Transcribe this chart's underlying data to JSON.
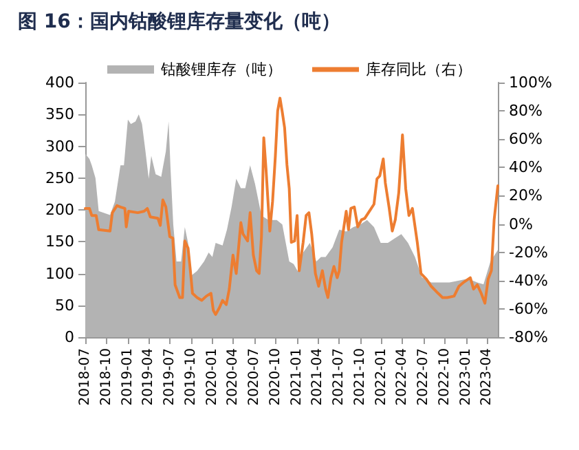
{
  "chart_data": {
    "type": "line",
    "title": "图 16：国内钴酸锂库存量变化（吨）",
    "legend": "top",
    "grid": false,
    "xlim": [
      "2018-07-01",
      "2023-05-18"
    ],
    "xticks": [
      "2018-07",
      "2018-10",
      "2019-01",
      "2019-04",
      "2019-07",
      "2019-10",
      "2020-01",
      "2020-04",
      "2020-07",
      "2020-10",
      "2021-01",
      "2021-04",
      "2021-07",
      "2021-10",
      "2022-01",
      "2022-04",
      "2022-07",
      "2022-10",
      "2023-01",
      "2023-04"
    ],
    "ylim": [
      0,
      400
    ],
    "yticks": [
      0,
      50,
      100,
      150,
      200,
      250,
      300,
      350,
      400
    ],
    "y2lim": [
      -80,
      100
    ],
    "y2ticks": [
      {
        "value": -80,
        "label": "-80%"
      },
      {
        "value": -60,
        "label": "-60%"
      },
      {
        "value": -40,
        "label": "-40%"
      },
      {
        "value": -20,
        "label": "-20%"
      },
      {
        "value": 0,
        "label": "0%"
      },
      {
        "value": 20,
        "label": "20%"
      },
      {
        "value": 40,
        "label": "40%"
      },
      {
        "value": 60,
        "label": "60%"
      },
      {
        "value": 80,
        "label": "80%"
      },
      {
        "value": 100,
        "label": "100%"
      }
    ],
    "series": [
      {
        "name": "钴酸锂库存（吨）",
        "type": "area",
        "color": "#b3b3b3",
        "x": [
          "2018-07-01",
          "2018-07-19",
          "2018-07-29",
          "2018-08-14",
          "2018-08-28",
          "2018-10-16",
          "2018-11-06",
          "2018-11-30",
          "2018-12-15",
          "2019-01-01",
          "2019-01-14",
          "2019-02-03",
          "2019-02-17",
          "2019-03-03",
          "2019-03-18",
          "2019-04-01",
          "2019-04-12",
          "2019-05-01",
          "2019-05-25",
          "2019-06-14",
          "2019-06-26",
          "2019-07-04",
          "2019-07-16",
          "2019-07-30",
          "2019-08-19",
          "2019-09-04",
          "2019-09-18",
          "2019-10-03",
          "2019-10-27",
          "2019-11-26",
          "2019-12-16",
          "2020-01-01",
          "2020-01-15",
          "2020-02-14",
          "2020-03-04",
          "2020-03-24",
          "2020-04-13",
          "2020-05-03",
          "2020-05-22",
          "2020-06-12",
          "2020-07-03",
          "2020-07-31",
          "2020-08-30",
          "2020-10-05",
          "2020-10-29",
          "2020-11-28",
          "2020-12-17",
          "2021-01-03",
          "2021-01-27",
          "2021-02-25",
          "2021-03-25",
          "2021-04-14",
          "2021-05-04",
          "2021-06-03",
          "2021-07-02",
          "2021-08-01",
          "2021-09-01",
          "2021-10-01",
          "2021-10-30",
          "2021-11-29",
          "2021-12-28",
          "2022-01-28",
          "2022-02-25",
          "2022-03-27",
          "2022-04-25",
          "2022-05-25",
          "2022-06-24",
          "2022-08-03",
          "2022-09-12",
          "2022-10-21",
          "2022-12-01",
          "2023-01-09",
          "2023-02-18",
          "2023-03-17",
          "2023-04-16",
          "2023-05-18"
        ],
        "values": [
          288,
          280,
          270,
          250,
          198,
          192,
          213,
          270,
          270,
          342,
          335,
          339,
          350,
          335,
          292,
          249,
          285,
          256,
          252,
          292,
          339,
          267,
          177,
          119,
          119,
          173,
          148,
          97,
          104,
          119,
          133,
          126,
          148,
          144,
          169,
          205,
          249,
          234,
          234,
          270,
          241,
          191,
          184,
          184,
          177,
          119,
          115,
          104,
          133,
          148,
          119,
          126,
          126,
          141,
          169,
          166,
          173,
          177,
          184,
          173,
          148,
          148,
          155,
          162,
          148,
          126,
          94,
          86,
          86,
          86,
          89,
          92,
          86,
          83,
          119,
          137
        ]
      },
      {
        "name": "库存同比（右）",
        "axis": "y2",
        "color": "#ed7d31",
        "x": [
          "2018-07-01",
          "2018-07-19",
          "2018-07-29",
          "2018-08-17",
          "2018-08-28",
          "2018-10-16",
          "2018-10-26",
          "2018-11-15",
          "2018-11-30",
          "2018-12-19",
          "2018-12-25",
          "2019-01-04",
          "2019-02-13",
          "2019-03-12",
          "2019-03-26",
          "2019-04-08",
          "2019-05-11",
          "2019-05-21",
          "2019-06-01",
          "2019-06-14",
          "2019-07-01",
          "2019-07-14",
          "2019-07-24",
          "2019-08-13",
          "2019-08-25",
          "2019-09-04",
          "2019-09-18",
          "2019-09-28",
          "2019-10-07",
          "2019-10-27",
          "2019-11-16",
          "2019-12-06",
          "2019-12-26",
          "2020-01-05",
          "2020-01-15",
          "2020-02-01",
          "2020-02-14",
          "2020-03-01",
          "2020-03-14",
          "2020-03-30",
          "2020-04-13",
          "2020-05-03",
          "2020-05-12",
          "2020-06-01",
          "2020-06-12",
          "2020-06-26",
          "2020-07-10",
          "2020-07-21",
          "2020-07-31",
          "2020-08-10",
          "2020-08-20",
          "2020-09-05",
          "2020-09-17",
          "2020-09-29",
          "2020-10-09",
          "2020-10-19",
          "2020-10-29",
          "2020-11-08",
          "2020-11-18",
          "2020-11-28",
          "2020-12-07",
          "2020-12-21",
          "2021-01-01",
          "2021-01-10",
          "2021-01-27",
          "2021-02-09",
          "2021-02-21",
          "2021-03-05",
          "2021-03-21",
          "2021-04-04",
          "2021-04-20",
          "2021-05-04",
          "2021-05-14",
          "2021-05-27",
          "2021-06-09",
          "2021-06-23",
          "2021-07-02",
          "2021-07-12",
          "2021-08-01",
          "2021-08-11",
          "2021-08-21",
          "2021-09-05",
          "2021-09-20",
          "2021-10-06",
          "2021-10-20",
          "2021-11-09",
          "2021-11-29",
          "2021-12-12",
          "2021-12-24",
          "2022-01-08",
          "2022-01-17",
          "2022-02-02",
          "2022-02-16",
          "2022-03-01",
          "2022-03-16",
          "2022-04-01",
          "2022-04-15",
          "2022-04-29",
          "2022-05-14",
          "2022-06-04",
          "2022-06-20",
          "2022-07-13",
          "2022-08-03",
          "2022-09-02",
          "2022-09-21",
          "2022-10-11",
          "2022-11-10",
          "2022-12-01",
          "2022-12-23",
          "2023-01-19",
          "2023-02-02",
          "2023-02-18",
          "2023-03-07",
          "2023-03-23",
          "2023-04-06",
          "2023-04-20",
          "2023-05-02",
          "2023-05-18"
        ],
        "values": [
          11,
          11,
          6,
          6,
          -4,
          -5,
          8,
          13,
          12,
          11,
          -2,
          9,
          8,
          9,
          11,
          5,
          4,
          -1,
          17,
          12,
          -9,
          -10,
          -43,
          -52,
          -52,
          -12,
          -17,
          -33,
          -49,
          -52,
          -54,
          -51,
          -49,
          -61,
          -64,
          -59,
          -54,
          -57,
          -46,
          -22,
          -35,
          1,
          -7,
          -12,
          8,
          -22,
          -33,
          -35,
          -9,
          61,
          38,
          -5,
          16,
          48,
          80,
          89,
          79,
          68,
          42,
          25,
          -13,
          -12,
          6,
          -33,
          -13,
          6,
          8,
          -7,
          -35,
          -44,
          -33,
          -46,
          -52,
          -38,
          -30,
          -38,
          -33,
          -13,
          9,
          -4,
          11,
          12,
          -2,
          3,
          4,
          9,
          14,
          32,
          34,
          46,
          29,
          12,
          -5,
          3,
          22,
          63,
          25,
          6,
          11,
          -13,
          -35,
          -39,
          -44,
          -49,
          -52,
          -52,
          -51,
          -44,
          -41,
          -38,
          -46,
          -43,
          -49,
          -56,
          -39,
          -33,
          3,
          27
        ]
      }
    ]
  }
}
